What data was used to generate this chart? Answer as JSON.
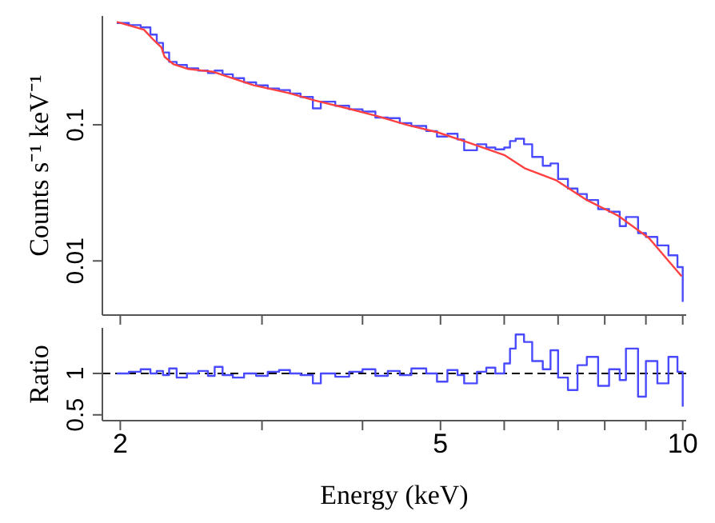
{
  "chart_data": [
    {
      "type": "line",
      "ylabel": "Counts s⁻¹ keV⁻¹",
      "log": "xy",
      "xlim": [
        1.9,
        10.1
      ],
      "ylim": [
        0.004,
        0.63
      ],
      "xticks": [
        {
          "value": 2,
          "label": null
        },
        {
          "value": 3,
          "label": null
        },
        {
          "value": 4,
          "label": null
        },
        {
          "value": 5,
          "label": null
        },
        {
          "value": 6,
          "label": null
        },
        {
          "value": 7,
          "label": null
        },
        {
          "value": 8,
          "label": null
        },
        {
          "value": 9,
          "label": null
        },
        {
          "value": 10,
          "label": null
        }
      ],
      "yticks": [
        0.01,
        0.1
      ],
      "tick_labels": "y",
      "marker": "none",
      "series": [
        {
          "color": "#4a4aff",
          "type": "step",
          "x": [
            1.98,
            2.05,
            2.12,
            2.18,
            2.22,
            2.26,
            2.3,
            2.35,
            2.42,
            2.5,
            2.57,
            2.62,
            2.68,
            2.76,
            2.85,
            2.95,
            3.05,
            3.15,
            3.25,
            3.35,
            3.47,
            3.55,
            3.7,
            3.85,
            4.0,
            4.15,
            4.3,
            4.45,
            4.6,
            4.8,
            4.95,
            5.1,
            5.25,
            5.35,
            5.55,
            5.7,
            5.85,
            6.0,
            6.1,
            6.2,
            6.35,
            6.5,
            6.7,
            6.85,
            7.0,
            7.2,
            7.4,
            7.6,
            7.85,
            8.1,
            8.35,
            8.5,
            8.8,
            9.0,
            9.3,
            9.6,
            9.85,
            10.0
          ],
          "values": [
            0.56,
            0.54,
            0.52,
            0.46,
            0.4,
            0.34,
            0.29,
            0.275,
            0.26,
            0.25,
            0.24,
            0.25,
            0.235,
            0.22,
            0.205,
            0.195,
            0.185,
            0.18,
            0.17,
            0.16,
            0.132,
            0.148,
            0.138,
            0.13,
            0.125,
            0.113,
            0.112,
            0.103,
            0.098,
            0.09,
            0.082,
            0.086,
            0.078,
            0.065,
            0.072,
            0.068,
            0.066,
            0.068,
            0.076,
            0.079,
            0.072,
            0.058,
            0.05,
            0.052,
            0.04,
            0.034,
            0.031,
            0.028,
            0.024,
            0.023,
            0.018,
            0.021,
            0.016,
            0.015,
            0.013,
            0.011,
            0.009,
            0.005
          ]
        },
        {
          "color": "#ff4040",
          "x": [
            1.98,
            2.14,
            2.2,
            2.25,
            2.27,
            2.33,
            2.43,
            2.61,
            2.93,
            3.24,
            3.49,
            3.83,
            4.17,
            4.54,
            4.96,
            5.42,
            6.0,
            6.36,
            6.97,
            7.6,
            8.3,
            9.08,
            9.97
          ],
          "values": [
            0.57,
            0.5,
            0.42,
            0.37,
            0.316,
            0.278,
            0.257,
            0.245,
            0.195,
            0.171,
            0.151,
            0.132,
            0.116,
            0.1,
            0.088,
            0.074,
            0.06,
            0.048,
            0.039,
            0.028,
            0.0216,
            0.0147,
            0.0077
          ]
        }
      ]
    },
    {
      "type": "step",
      "xlabel": "Energy (keV)",
      "ylabel": "Ratio",
      "log": "x",
      "xlim": [
        1.9,
        10.1
      ],
      "ylim": [
        0.43,
        1.55
      ],
      "xticks": [
        2,
        {
          "value": 3,
          "label": null
        },
        {
          "value": 4,
          "label": null
        },
        5,
        {
          "value": 6,
          "label": null
        },
        {
          "value": 7,
          "label": null
        },
        {
          "value": 8,
          "label": null
        },
        {
          "value": 9,
          "label": null
        },
        10
      ],
      "yticks": [
        0.5,
        1
      ],
      "marker": "none",
      "ref_lines": [
        {
          "axis": "y",
          "value": 1,
          "label": null,
          "color": "#000000",
          "line_style": "dashed"
        }
      ],
      "series": [
        {
          "color": "#4a4aff",
          "x": [
            1.98,
            2.05,
            2.12,
            2.18,
            2.22,
            2.26,
            2.3,
            2.35,
            2.42,
            2.5,
            2.57,
            2.62,
            2.68,
            2.76,
            2.85,
            2.95,
            3.05,
            3.15,
            3.25,
            3.35,
            3.47,
            3.55,
            3.7,
            3.85,
            4.0,
            4.15,
            4.3,
            4.45,
            4.6,
            4.8,
            4.95,
            5.1,
            5.25,
            5.35,
            5.55,
            5.7,
            5.85,
            6.0,
            6.1,
            6.2,
            6.35,
            6.5,
            6.7,
            6.85,
            7.0,
            7.2,
            7.4,
            7.6,
            7.85,
            8.1,
            8.35,
            8.5,
            8.8,
            9.0,
            9.3,
            9.6,
            9.85,
            10.0
          ],
          "values": [
            1.0,
            1.02,
            1.05,
            1.0,
            1.03,
            0.98,
            1.06,
            0.95,
            1.0,
            1.03,
            0.97,
            1.08,
            0.98,
            0.95,
            1.0,
            0.97,
            1.02,
            1.04,
            1.0,
            0.98,
            0.88,
            1.0,
            0.96,
            1.02,
            1.05,
            0.97,
            1.03,
            0.98,
            1.06,
            1.0,
            0.9,
            1.04,
            0.98,
            0.88,
            1.02,
            1.07,
            1.0,
            1.12,
            1.3,
            1.47,
            1.38,
            1.15,
            1.05,
            1.28,
            0.95,
            0.8,
            1.1,
            1.2,
            0.85,
            1.05,
            0.92,
            1.3,
            0.72,
            1.15,
            0.88,
            1.2,
            1.02,
            0.6
          ]
        }
      ]
    }
  ]
}
